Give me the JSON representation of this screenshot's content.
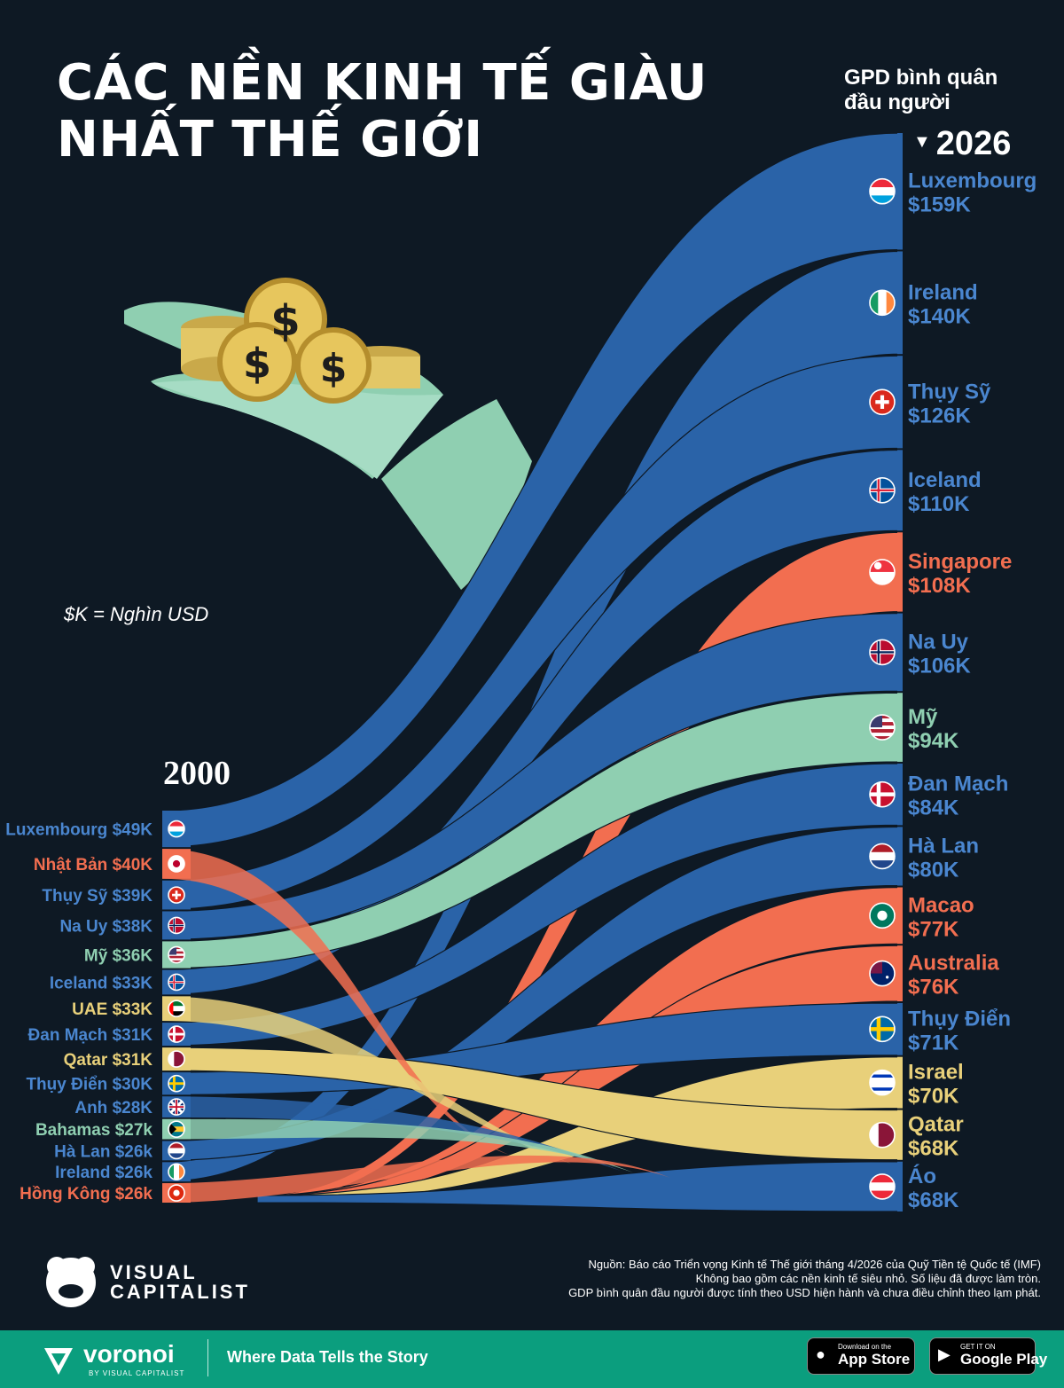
{
  "title_lines": [
    "CÁC NỀN KINH TẾ GIÀU",
    "NHẤT THẾ GIỚI"
  ],
  "metric_label_lines": [
    "GPD bình quân",
    "đầu người"
  ],
  "year_end": "2026",
  "year_start": "2000",
  "unit_note": "$K = Nghìn USD",
  "colors": {
    "background": "#0e1924",
    "blue": "#2a63a8",
    "orange": "#f26e50",
    "teal": "#8fcfb1",
    "yellow": "#e8d07a"
  },
  "chart_data": {
    "type": "sankey-slope",
    "unit": "$K",
    "left_year": "2000",
    "right_year": "2026",
    "left": [
      {
        "name": "Luxembourg",
        "label": "Luxembourg $49K",
        "value": 49,
        "color": "#2a63a8",
        "flag": "luxembourg-flag"
      },
      {
        "name": "Nhật Bản",
        "label": "Nhật Bản $40K",
        "value": 40,
        "color": "#f26e50",
        "flag": "japan-flag"
      },
      {
        "name": "Thụy Sỹ",
        "label": "Thụy Sỹ $39K",
        "value": 39,
        "color": "#2a63a8",
        "flag": "switzerland-flag"
      },
      {
        "name": "Na Uy",
        "label": "Na Uy $38K",
        "value": 38,
        "color": "#2a63a8",
        "flag": "norway-flag"
      },
      {
        "name": "Mỹ",
        "label": "Mỹ $36K",
        "value": 36,
        "color": "#8fcfb1",
        "flag": "usa-flag"
      },
      {
        "name": "Iceland",
        "label": "Iceland $33K",
        "value": 33,
        "color": "#2a63a8",
        "flag": "iceland-flag"
      },
      {
        "name": "UAE",
        "label": "UAE $33K",
        "value": 33,
        "color": "#e8d07a",
        "flag": "uae-flag"
      },
      {
        "name": "Đan Mạch",
        "label": "Đan Mạch $31K",
        "value": 31,
        "color": "#2a63a8",
        "flag": "denmark-flag"
      },
      {
        "name": "Qatar",
        "label": "Qatar $31K",
        "value": 31,
        "color": "#e8d07a",
        "flag": "qatar-flag"
      },
      {
        "name": "Thụy Điển",
        "label": "Thụy Điển $30K",
        "value": 30,
        "color": "#2a63a8",
        "flag": "sweden-flag"
      },
      {
        "name": "Anh",
        "label": "Anh $28K",
        "value": 28,
        "color": "#2a63a8",
        "flag": "uk-flag"
      },
      {
        "name": "Bahamas",
        "label": "Bahamas  $27k",
        "value": 27,
        "color": "#8fcfb1",
        "flag": "bahamas-flag"
      },
      {
        "name": "Hà Lan",
        "label": "Hà Lan $26k",
        "value": 26,
        "color": "#2a63a8",
        "flag": "netherlands-flag"
      },
      {
        "name": "Ireland",
        "label": "Ireland  $26k",
        "value": 26,
        "color": "#2a63a8",
        "flag": "ireland-flag"
      },
      {
        "name": "Hồng Kông",
        "label": "Hồng Kông $26k",
        "value": 26,
        "color": "#f26e50",
        "flag": "hongkong-flag"
      }
    ],
    "right": [
      {
        "name": "Luxembourg",
        "value_label": "$159K",
        "value": 159,
        "color": "#2a63a8",
        "flag": "luxembourg-flag"
      },
      {
        "name": "Ireland",
        "value_label": "$140K",
        "value": 140,
        "color": "#2a63a8",
        "flag": "ireland-flag"
      },
      {
        "name": "Thụy Sỹ",
        "value_label": "$126K",
        "value": 126,
        "color": "#2a63a8",
        "flag": "switzerland-flag"
      },
      {
        "name": "Iceland",
        "value_label": "$110K",
        "value": 110,
        "color": "#2a63a8",
        "flag": "iceland-flag"
      },
      {
        "name": "Singapore",
        "value_label": "$108K",
        "value": 108,
        "color": "#f26e50",
        "flag": "singapore-flag"
      },
      {
        "name": "Na Uy",
        "value_label": "$106K",
        "value": 106,
        "color": "#2a63a8",
        "flag": "norway-flag"
      },
      {
        "name": "Mỹ",
        "value_label": "$94K",
        "value": 94,
        "color": "#8fcfb1",
        "flag": "usa-flag"
      },
      {
        "name": "Đan Mạch",
        "value_label": "$84K",
        "value": 84,
        "color": "#2a63a8",
        "flag": "denmark-flag"
      },
      {
        "name": "Hà Lan",
        "value_label": "$80K",
        "value": 80,
        "color": "#2a63a8",
        "flag": "netherlands-flag"
      },
      {
        "name": "Macao",
        "value_label": "$77K",
        "value": 77,
        "color": "#f26e50",
        "flag": "macao-flag"
      },
      {
        "name": "Australia",
        "value_label": "$76K",
        "value": 76,
        "color": "#f26e50",
        "flag": "australia-flag"
      },
      {
        "name": "Thụy Điển",
        "value_label": "$71K",
        "value": 71,
        "color": "#2a63a8",
        "flag": "sweden-flag"
      },
      {
        "name": "Israel",
        "value_label": "$70K",
        "value": 70,
        "color": "#e8d07a",
        "flag": "israel-flag"
      },
      {
        "name": "Qatar",
        "value_label": "$68K",
        "value": 68,
        "color": "#e8d07a",
        "flag": "qatar-flag"
      },
      {
        "name": "Áo",
        "value_label": "$68K",
        "value": 68,
        "color": "#2a63a8",
        "flag": "austria-flag"
      }
    ]
  },
  "source_lines": [
    "Nguồn: Báo cáo Triển vọng Kinh tế Thế giới tháng 4/2026 của Quỹ Tiền tệ Quốc tế (IMF)",
    "Không bao gồm các nền kinh tế siêu nhỏ. Số liệu đã được làm tròn.",
    "GDP bình quân đầu người được tính theo USD hiện hành và chưa điều chỉnh theo lạm phát."
  ],
  "brand": {
    "vc_line1": "VISUAL",
    "vc_line2": "CAPITALIST",
    "voronoi": "voronoi",
    "voronoi_sub": "BY VISUAL CAPITALIST",
    "tagline": "Where Data Tells the Story"
  },
  "stores": {
    "apple_small": "Download on the",
    "apple_big": "App Store",
    "google_small": "GET IT ON",
    "google_big": "Google Play"
  }
}
